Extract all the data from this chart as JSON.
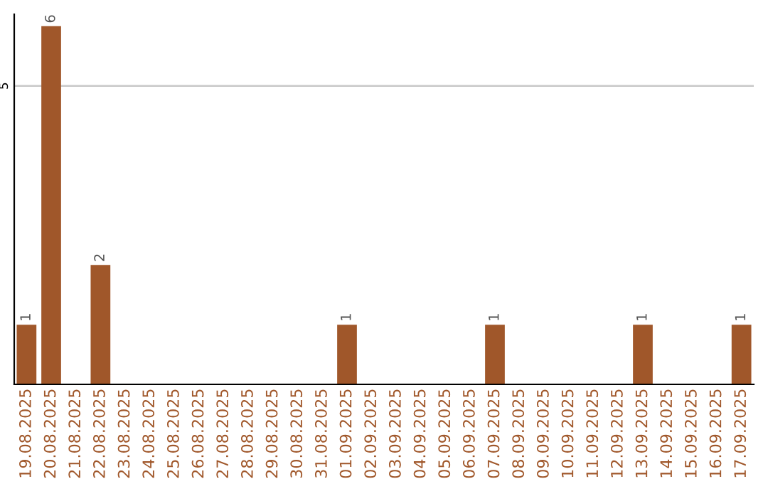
{
  "chart_data": {
    "type": "bar",
    "categories": [
      "19.08.2025",
      "20.08.2025",
      "21.08.2025",
      "22.08.2025",
      "23.08.2025",
      "24.08.2025",
      "25.08.2025",
      "26.08.2025",
      "27.08.2025",
      "28.08.2025",
      "29.08.2025",
      "30.08.2025",
      "31.08.2025",
      "01.09.2025",
      "02.09.2025",
      "03.09.2025",
      "04.09.2025",
      "05.09.2025",
      "06.09.2025",
      "07.09.2025",
      "08.09.2025",
      "09.09.2025",
      "10.09.2025",
      "11.09.2025",
      "12.09.2025",
      "13.09.2025",
      "14.09.2025",
      "15.09.2025",
      "16.09.2025",
      "17.09.2025"
    ],
    "values": [
      1,
      6,
      0,
      2,
      0,
      0,
      0,
      0,
      0,
      0,
      0,
      0,
      0,
      1,
      0,
      0,
      0,
      0,
      0,
      1,
      0,
      0,
      0,
      0,
      0,
      1,
      0,
      0,
      0,
      1
    ],
    "value_labels": [
      "1",
      "6",
      null,
      "2",
      null,
      null,
      null,
      null,
      null,
      null,
      null,
      null,
      null,
      "1",
      null,
      null,
      null,
      null,
      null,
      "1",
      null,
      null,
      null,
      null,
      null,
      "1",
      null,
      null,
      null,
      "1"
    ],
    "color": "#a0572a",
    "ylim": [
      0,
      6.2
    ],
    "yticks": [
      5
    ],
    "grid": "y",
    "legend": false
  }
}
